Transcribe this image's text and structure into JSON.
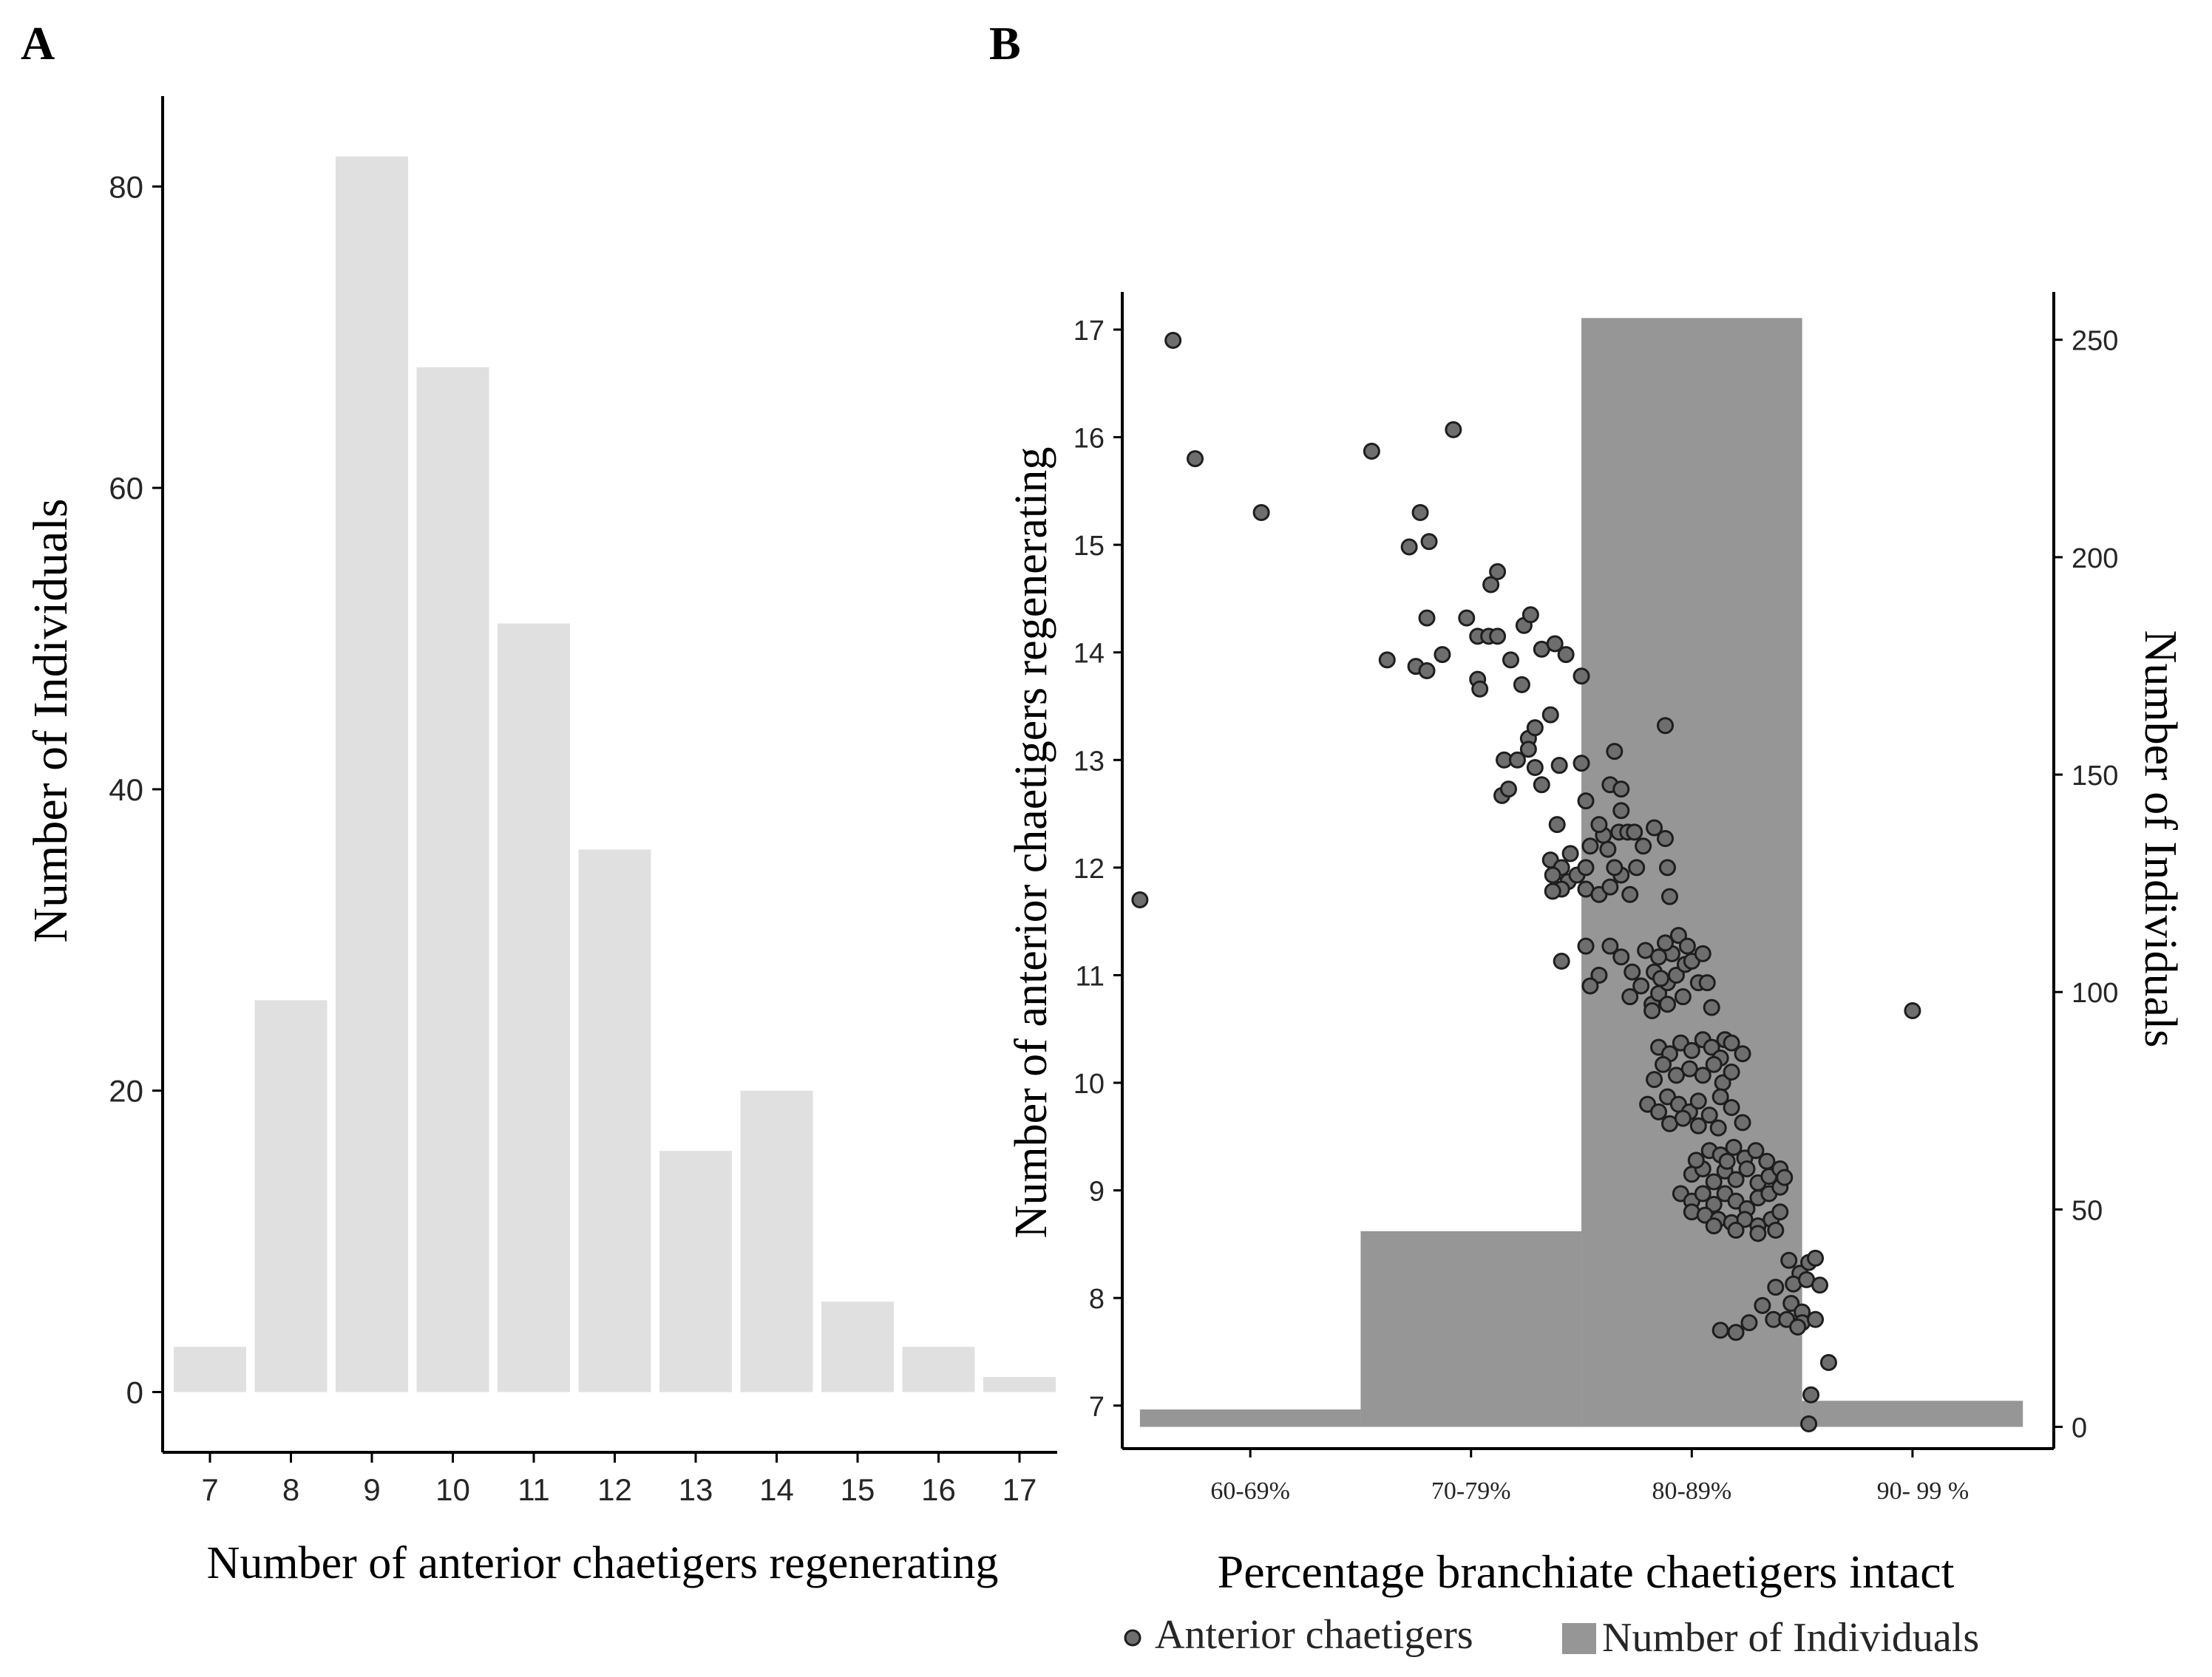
{
  "colors": {
    "bar_a": "#e0e0e0",
    "bar_b": "#969696",
    "point_fill": "#6e6e6e",
    "point_stroke": "#1e1e1e",
    "axis": "#000000",
    "text": "#262626"
  },
  "chart_data": [
    {
      "panel_label": "A",
      "type": "bar",
      "title": "",
      "xlabel": "Number of anterior chaetigers regenerating",
      "ylabel": "Number of Individuals",
      "categories": [
        "7",
        "8",
        "9",
        "10",
        "11",
        "12",
        "13",
        "14",
        "15",
        "16",
        "17"
      ],
      "values": [
        3,
        26,
        82,
        68,
        51,
        36,
        16,
        20,
        6,
        3,
        1
      ],
      "ylim": [
        -4,
        86
      ],
      "yticks": [
        0,
        20,
        40,
        60,
        80
      ],
      "grid": false
    },
    {
      "panel_label": "B",
      "type": "scatter",
      "title": "",
      "xlabel": "Percentage branchiate chaetigers intact",
      "ylabel": "Number of anterior chaetigers regenerating",
      "ylabel_right": "Number of Individuals",
      "categories": [
        "60-69%",
        "70-79%",
        "80-89%",
        "90- 99 %"
      ],
      "bar_series": {
        "name": "Number of Individuals",
        "values": [
          4,
          45,
          255,
          6
        ]
      },
      "xlim": [
        54.2,
        96.4
      ],
      "ylim": [
        6.6,
        17.35
      ],
      "yticks": [
        7,
        8,
        9,
        10,
        11,
        12,
        13,
        14,
        15,
        16,
        17
      ],
      "y2lim": [
        -5,
        261
      ],
      "y2ticks": [
        0,
        50,
        100,
        150,
        200,
        250
      ],
      "legend": {
        "position": "bottom",
        "point_label": "Anterior chaetigers",
        "bar_label": "Number of Individuals"
      },
      "points": [
        [
          56.5,
          16.9
        ],
        [
          57.5,
          15.8
        ],
        [
          60.5,
          15.3
        ],
        [
          55.0,
          11.7
        ],
        [
          90.0,
          10.67
        ],
        [
          65.5,
          15.87
        ],
        [
          69.2,
          16.07
        ],
        [
          67.7,
          15.3
        ],
        [
          68.1,
          15.03
        ],
        [
          67.2,
          14.98
        ],
        [
          66.2,
          13.93
        ],
        [
          67.5,
          13.87
        ],
        [
          68.0,
          13.83
        ],
        [
          68.7,
          13.98
        ],
        [
          68.0,
          14.32
        ],
        [
          69.8,
          14.32
        ],
        [
          70.3,
          14.15
        ],
        [
          70.8,
          14.15
        ],
        [
          71.2,
          14.15
        ],
        [
          70.3,
          13.75
        ],
        [
          70.4,
          13.66
        ],
        [
          70.9,
          14.63
        ],
        [
          71.2,
          14.75
        ],
        [
          71.8,
          13.93
        ],
        [
          72.4,
          14.25
        ],
        [
          72.7,
          14.35
        ],
        [
          73.2,
          14.03
        ],
        [
          73.8,
          14.08
        ],
        [
          74.3,
          13.98
        ],
        [
          72.3,
          13.7
        ],
        [
          75.0,
          13.78
        ],
        [
          72.6,
          13.2
        ],
        [
          72.9,
          13.3
        ],
        [
          72.6,
          13.1
        ],
        [
          73.6,
          13.42
        ],
        [
          71.5,
          13.0
        ],
        [
          72.1,
          13.0
        ],
        [
          71.4,
          12.67
        ],
        [
          71.7,
          12.73
        ],
        [
          72.9,
          12.93
        ],
        [
          73.2,
          12.77
        ],
        [
          74.0,
          12.95
        ],
        [
          75.0,
          12.97
        ],
        [
          75.2,
          12.62
        ],
        [
          76.3,
          12.77
        ],
        [
          76.8,
          12.73
        ],
        [
          76.5,
          13.08
        ],
        [
          78.8,
          13.32
        ],
        [
          73.9,
          12.4
        ],
        [
          73.6,
          12.07
        ],
        [
          74.1,
          12.0
        ],
        [
          73.7,
          11.93
        ],
        [
          74.4,
          11.87
        ],
        [
          74.8,
          11.93
        ],
        [
          75.2,
          11.8
        ],
        [
          74.5,
          12.13
        ],
        [
          75.4,
          12.2
        ],
        [
          75.2,
          12.0
        ],
        [
          74.1,
          11.8
        ],
        [
          73.7,
          11.78
        ],
        [
          75.8,
          11.75
        ],
        [
          76.3,
          11.82
        ],
        [
          76.8,
          11.93
        ],
        [
          77.2,
          11.75
        ],
        [
          77.5,
          12.0
        ],
        [
          76.0,
          12.3
        ],
        [
          76.7,
          12.33
        ],
        [
          77.1,
          12.33
        ],
        [
          77.8,
          12.2
        ],
        [
          78.3,
          12.37
        ],
        [
          78.8,
          12.27
        ],
        [
          78.9,
          12.0
        ],
        [
          79.0,
          11.73
        ],
        [
          76.8,
          12.53
        ],
        [
          76.2,
          12.17
        ],
        [
          75.8,
          12.4
        ],
        [
          76.5,
          12.0
        ],
        [
          77.4,
          12.33
        ],
        [
          74.1,
          11.13
        ],
        [
          75.2,
          11.27
        ],
        [
          75.8,
          11.0
        ],
        [
          75.4,
          10.9
        ],
        [
          76.3,
          11.27
        ],
        [
          76.8,
          11.17
        ],
        [
          77.3,
          11.03
        ],
        [
          77.7,
          10.9
        ],
        [
          77.2,
          10.8
        ],
        [
          78.2,
          10.73
        ],
        [
          78.5,
          10.83
        ],
        [
          78.9,
          10.93
        ],
        [
          79.3,
          11.0
        ],
        [
          79.7,
          11.1
        ],
        [
          79.1,
          11.2
        ],
        [
          78.5,
          11.17
        ],
        [
          77.9,
          11.23
        ],
        [
          78.3,
          11.03
        ],
        [
          78.8,
          11.3
        ],
        [
          79.4,
          11.37
        ],
        [
          79.8,
          11.27
        ],
        [
          80.0,
          11.13
        ],
        [
          80.5,
          11.2
        ],
        [
          80.3,
          10.93
        ],
        [
          79.6,
          10.8
        ],
        [
          78.9,
          10.73
        ],
        [
          78.2,
          10.67
        ],
        [
          78.6,
          10.97
        ],
        [
          80.7,
          10.93
        ],
        [
          80.9,
          10.7
        ],
        [
          78.5,
          10.33
        ],
        [
          79.0,
          10.27
        ],
        [
          79.5,
          10.37
        ],
        [
          80.0,
          10.3
        ],
        [
          80.5,
          10.4
        ],
        [
          80.9,
          10.33
        ],
        [
          81.3,
          10.23
        ],
        [
          81.5,
          10.4
        ],
        [
          81.8,
          10.37
        ],
        [
          78.3,
          10.03
        ],
        [
          78.7,
          10.17
        ],
        [
          79.3,
          10.07
        ],
        [
          79.9,
          10.13
        ],
        [
          80.5,
          10.07
        ],
        [
          81.0,
          10.17
        ],
        [
          81.4,
          10.0
        ],
        [
          81.8,
          10.1
        ],
        [
          82.3,
          10.27
        ],
        [
          78.0,
          9.8
        ],
        [
          78.5,
          9.73
        ],
        [
          78.9,
          9.87
        ],
        [
          79.4,
          9.8
        ],
        [
          79.9,
          9.73
        ],
        [
          80.3,
          9.83
        ],
        [
          80.8,
          9.7
        ],
        [
          81.3,
          9.87
        ],
        [
          81.8,
          9.77
        ],
        [
          82.3,
          9.63
        ],
        [
          79.0,
          9.62
        ],
        [
          79.6,
          9.67
        ],
        [
          80.3,
          9.6
        ],
        [
          81.2,
          9.58
        ],
        [
          80.8,
          9.37
        ],
        [
          81.3,
          9.33
        ],
        [
          81.9,
          9.4
        ],
        [
          82.4,
          9.3
        ],
        [
          82.9,
          9.37
        ],
        [
          83.4,
          9.27
        ],
        [
          80.0,
          9.15
        ],
        [
          80.5,
          9.2
        ],
        [
          81.0,
          9.08
        ],
        [
          81.5,
          9.18
        ],
        [
          82.0,
          9.1
        ],
        [
          82.5,
          9.2
        ],
        [
          83.0,
          9.07
        ],
        [
          83.5,
          9.13
        ],
        [
          84.0,
          9.2
        ],
        [
          79.5,
          8.97
        ],
        [
          80.0,
          8.9
        ],
        [
          80.5,
          8.97
        ],
        [
          81.0,
          8.87
        ],
        [
          81.5,
          8.97
        ],
        [
          82.0,
          8.9
        ],
        [
          82.5,
          8.83
        ],
        [
          83.0,
          8.93
        ],
        [
          83.5,
          8.97
        ],
        [
          84.0,
          9.03
        ],
        [
          80.0,
          8.8
        ],
        [
          80.6,
          8.77
        ],
        [
          81.2,
          8.73
        ],
        [
          81.8,
          8.7
        ],
        [
          82.4,
          8.73
        ],
        [
          83.0,
          8.67
        ],
        [
          83.6,
          8.73
        ],
        [
          84.0,
          8.8
        ],
        [
          81.0,
          8.67
        ],
        [
          82.0,
          8.63
        ],
        [
          83.0,
          8.6
        ],
        [
          83.8,
          8.63
        ],
        [
          80.2,
          9.28
        ],
        [
          81.6,
          9.27
        ],
        [
          84.2,
          9.12
        ],
        [
          84.4,
          8.35
        ],
        [
          84.9,
          8.23
        ],
        [
          85.3,
          8.33
        ],
        [
          85.6,
          8.37
        ],
        [
          84.6,
          8.13
        ],
        [
          85.2,
          8.17
        ],
        [
          85.8,
          8.12
        ],
        [
          83.8,
          8.1
        ],
        [
          84.5,
          7.95
        ],
        [
          85.0,
          7.87
        ],
        [
          83.2,
          7.93
        ],
        [
          83.7,
          7.8
        ],
        [
          84.3,
          7.8
        ],
        [
          85.0,
          7.77
        ],
        [
          85.6,
          7.8
        ],
        [
          81.3,
          7.7
        ],
        [
          82.0,
          7.68
        ],
        [
          82.6,
          7.77
        ],
        [
          84.8,
          7.73
        ],
        [
          86.2,
          7.4
        ],
        [
          85.4,
          7.1
        ],
        [
          85.3,
          6.83
        ]
      ]
    }
  ]
}
